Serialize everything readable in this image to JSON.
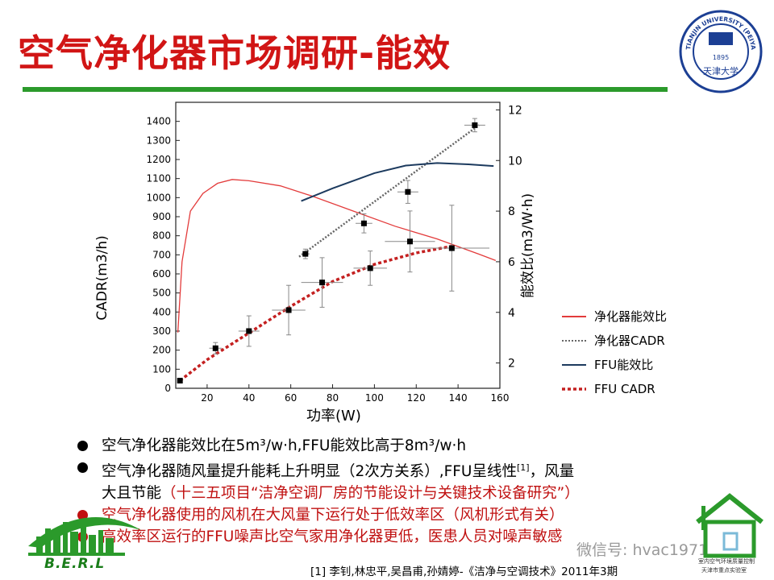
{
  "header": {
    "title": "空气净化器市场调研-能效"
  },
  "logo": {
    "name": "university-seal-icon",
    "text_outer": "TIANJIN UNIVERSITY (PEIYANG UNIVERSITY)",
    "text_inner": "1895",
    "text_bottom": "天津大学",
    "color": "#1c3f94"
  },
  "chart_data": {
    "type": "line",
    "xlabel": "功率(W)",
    "ylabel": "CADR(m3/h)",
    "y2label": "能效比(m3/W·h)",
    "xlim": [
      5,
      160
    ],
    "ylim": [
      0,
      1500
    ],
    "y2lim": [
      1,
      12.3
    ],
    "x_ticks": [
      20,
      40,
      60,
      80,
      100,
      120,
      140,
      160
    ],
    "y_ticks": [
      0,
      100,
      200,
      300,
      400,
      500,
      600,
      700,
      800,
      900,
      1000,
      1100,
      1200,
      1300,
      1400
    ],
    "y2_ticks": [
      2,
      4,
      6,
      8,
      10,
      12
    ],
    "legend_position": "right",
    "series": [
      {
        "name": "净化器能效比",
        "axis": "right",
        "style": "solid",
        "color": "#e33b3b",
        "x": [
          6,
          8,
          12,
          18,
          25,
          32,
          40,
          55,
          70,
          90,
          110,
          130,
          150,
          158
        ],
        "y": [
          3.2,
          6.0,
          8.0,
          8.7,
          9.1,
          9.25,
          9.2,
          9.0,
          8.6,
          8.0,
          7.4,
          6.9,
          6.3,
          6.05
        ]
      },
      {
        "name": "净化器CADR",
        "axis": "left",
        "style": "dotted",
        "color": "#666666",
        "x": [
          64,
          150
        ],
        "y": [
          690,
          1380
        ]
      },
      {
        "name": "FFU能效比",
        "axis": "right",
        "style": "solid",
        "color": "#1c3a5e",
        "x": [
          65,
          80,
          100,
          115,
          130,
          145,
          157
        ],
        "y": [
          8.4,
          8.9,
          9.5,
          9.8,
          9.9,
          9.85,
          9.78
        ]
      },
      {
        "name": "FFU CADR",
        "axis": "left",
        "style": "dashed",
        "color": "#c42020",
        "x": [
          7,
          20,
          40,
          60,
          80,
          100,
          120,
          137
        ],
        "y": [
          40,
          150,
          290,
          430,
          560,
          650,
          710,
          745
        ]
      }
    ],
    "points": [
      {
        "x": 7,
        "y": 40,
        "xerr": 1,
        "yerr": 0
      },
      {
        "x": 24,
        "y": 210,
        "xerr": 3,
        "yerr": 30
      },
      {
        "x": 40,
        "y": 300,
        "xerr": 5,
        "yerr": 80
      },
      {
        "x": 59,
        "y": 410,
        "xerr": 8,
        "yerr": 130
      },
      {
        "x": 75,
        "y": 555,
        "xerr": 10,
        "yerr": 130
      },
      {
        "x": 98,
        "y": 630,
        "xerr": 8,
        "yerr": 90
      },
      {
        "x": 117,
        "y": 770,
        "xerr": 12,
        "yerr": 160
      },
      {
        "x": 137,
        "y": 735,
        "xerr": 18,
        "yerr": 225
      },
      {
        "x": 67,
        "y": 705,
        "xerr": 2,
        "yerr": 25
      },
      {
        "x": 95,
        "y": 865,
        "xerr": 4,
        "yerr": 50
      },
      {
        "x": 116,
        "y": 1030,
        "xerr": 5,
        "yerr": 60
      },
      {
        "x": 148,
        "y": 1380,
        "xerr": 5,
        "yerr": 35
      }
    ]
  },
  "bullets": [
    {
      "text": "空气净化器能效比在5m³/w·h,FFU能效比高于8m³/w·h",
      "color": "black"
    },
    {
      "text": "空气净化器随风量提升能耗上升明显（2次方关系）,FFU呈线性",
      "ref": "[1]",
      "tail": "，风量",
      "color": "black"
    },
    {
      "line2": "大且节能",
      "note": "（十三五项目“洁净空调厂房的节能设计与关键技术设备研究”）"
    },
    {
      "text": "空气净化器使用的风机在大风量下运行处于低效率区（风机形式有关）",
      "color": "red"
    },
    {
      "text": "高效率区运行的FFU噪声比空气家用净化器更低，医患人员对噪声敏感",
      "color": "red"
    }
  ],
  "footer": {
    "berl": "B.E.R.L",
    "reference": "[1] 李钊,林忠平,吴昌甫,孙婧婷-《洁净与空调技术》2011年3期",
    "watermark": "微信号: hvac1971",
    "lab_line1": "室内空气环境质量控制",
    "lab_line2": "天津市重点实验室"
  },
  "colors": {
    "title": "#d11515",
    "rule": "#2b9a2b",
    "bullet_red": "#c01010"
  }
}
